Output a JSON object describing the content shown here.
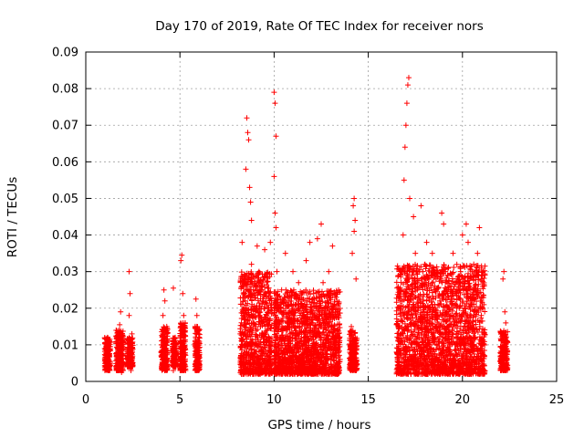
{
  "chart_data": {
    "type": "scatter",
    "title": "Day 170 of 2019, Rate Of TEC Index for receiver nors",
    "xlabel": "GPS time / hours",
    "ylabel": "ROTI / TECUs",
    "xlim": [
      0,
      25
    ],
    "ylim": [
      0,
      0.09
    ],
    "grid": true,
    "x_ticks": [
      0,
      5,
      10,
      15,
      20,
      25
    ],
    "y_ticks": [
      0,
      0.01,
      0.02,
      0.03,
      0.04,
      0.05,
      0.06,
      0.07,
      0.08,
      0.09
    ],
    "x_tick_labels": [
      "0",
      "5",
      "10",
      "15",
      "20",
      "25"
    ],
    "y_tick_labels": [
      "0",
      "0.01",
      "0.02",
      "0.03",
      "0.04",
      "0.05",
      "0.06",
      "0.07",
      "0.08",
      "0.09"
    ],
    "marker": "+",
    "marker_color": "#ff0000",
    "series": [
      {
        "points": [
          [
            1.05,
            0.0105
          ],
          [
            1.1,
            0.0085
          ],
          [
            1.15,
            0.012
          ],
          [
            1.2,
            0.0062
          ],
          [
            1.25,
            0.0041
          ],
          [
            1.3,
            0.0095
          ],
          [
            1.1,
            0.0055
          ],
          [
            1.22,
            0.0075
          ],
          [
            1.7,
            0.006
          ],
          [
            1.75,
            0.01
          ],
          [
            1.8,
            0.0155
          ],
          [
            1.85,
            0.019
          ],
          [
            1.9,
            0.0025
          ],
          [
            1.95,
            0.0125
          ],
          [
            1.8,
            0.0085
          ],
          [
            1.9,
            0.0045
          ],
          [
            2.25,
            0.0105
          ],
          [
            2.3,
            0.03
          ],
          [
            2.35,
            0.024
          ],
          [
            2.4,
            0.006
          ],
          [
            2.45,
            0.013
          ],
          [
            2.3,
            0.018
          ],
          [
            2.4,
            0.003
          ],
          [
            2.35,
            0.009
          ],
          [
            4.05,
            0.0085
          ],
          [
            4.1,
            0.0125
          ],
          [
            4.15,
            0.025
          ],
          [
            4.2,
            0.022
          ],
          [
            4.25,
            0.006
          ],
          [
            4.3,
            0.015
          ],
          [
            4.2,
            0.0035
          ],
          [
            4.1,
            0.018
          ],
          [
            4.6,
            0.0095
          ],
          [
            4.65,
            0.0255
          ],
          [
            4.7,
            0.006
          ],
          [
            4.75,
            0.012
          ],
          [
            4.65,
            0.003
          ],
          [
            5.0,
            0.0105
          ],
          [
            5.05,
            0.033
          ],
          [
            5.1,
            0.0345
          ],
          [
            5.15,
            0.024
          ],
          [
            5.2,
            0.018
          ],
          [
            5.25,
            0.006
          ],
          [
            5.1,
            0.014
          ],
          [
            5.2,
            0.009
          ],
          [
            5.8,
            0.01
          ],
          [
            5.85,
            0.0225
          ],
          [
            5.9,
            0.018
          ],
          [
            5.95,
            0.006
          ],
          [
            6.0,
            0.013
          ],
          [
            5.9,
            0.004
          ],
          [
            6.0,
            0.0085
          ],
          [
            8.2,
            0.013
          ],
          [
            8.3,
            0.038
          ],
          [
            8.4,
            0.027
          ],
          [
            8.5,
            0.058
          ],
          [
            8.55,
            0.072
          ],
          [
            8.6,
            0.068
          ],
          [
            8.65,
            0.066
          ],
          [
            8.7,
            0.053
          ],
          [
            8.75,
            0.049
          ],
          [
            8.8,
            0.044
          ],
          [
            8.5,
            0.02
          ],
          [
            8.6,
            0.01
          ],
          [
            8.7,
            0.005
          ],
          [
            8.9,
            0.025
          ],
          [
            9.0,
            0.015
          ],
          [
            9.1,
            0.037
          ],
          [
            9.2,
            0.03
          ],
          [
            9.3,
            0.008
          ],
          [
            9.4,
            0.022
          ],
          [
            9.5,
            0.036
          ],
          [
            9.6,
            0.018
          ],
          [
            9.7,
            0.012
          ],
          [
            8.8,
            0.032
          ],
          [
            9.0,
            0.008
          ],
          [
            9.3,
            0.026
          ],
          [
            9.6,
            0.004
          ],
          [
            8.4,
            0.006
          ],
          [
            9.8,
            0.038
          ],
          [
            10.0,
            0.079
          ],
          [
            10.05,
            0.076
          ],
          [
            10.1,
            0.067
          ],
          [
            10.0,
            0.056
          ],
          [
            10.05,
            0.046
          ],
          [
            10.1,
            0.042
          ],
          [
            10.15,
            0.03
          ],
          [
            10.0,
            0.02
          ],
          [
            10.1,
            0.01
          ],
          [
            10.2,
            0.005
          ],
          [
            10.3,
            0.016
          ],
          [
            10.4,
            0.025
          ],
          [
            10.5,
            0.012
          ],
          [
            10.6,
            0.035
          ],
          [
            10.7,
            0.008
          ],
          [
            10.8,
            0.022
          ],
          [
            10.9,
            0.006
          ],
          [
            11.0,
            0.03
          ],
          [
            11.1,
            0.015
          ],
          [
            11.2,
            0.01
          ],
          [
            11.3,
            0.027
          ],
          [
            11.4,
            0.005
          ],
          [
            11.5,
            0.02
          ],
          [
            11.6,
            0.012
          ],
          [
            11.7,
            0.033
          ],
          [
            11.8,
            0.008
          ],
          [
            11.9,
            0.038
          ],
          [
            12.0,
            0.016
          ],
          [
            12.1,
            0.024
          ],
          [
            12.2,
            0.005
          ],
          [
            12.3,
            0.039
          ],
          [
            12.4,
            0.013
          ],
          [
            12.5,
            0.043
          ],
          [
            12.6,
            0.027
          ],
          [
            12.7,
            0.009
          ],
          [
            12.8,
            0.018
          ],
          [
            12.9,
            0.03
          ],
          [
            13.0,
            0.006
          ],
          [
            13.1,
            0.037
          ],
          [
            13.2,
            0.014
          ],
          [
            13.3,
            0.023
          ],
          [
            13.4,
            0.01
          ],
          [
            13.5,
            0.006
          ],
          [
            14.1,
            0.015
          ],
          [
            14.15,
            0.035
          ],
          [
            14.2,
            0.048
          ],
          [
            14.25,
            0.05
          ],
          [
            14.3,
            0.044
          ],
          [
            14.35,
            0.028
          ],
          [
            14.2,
            0.008
          ],
          [
            14.3,
            0.012
          ],
          [
            14.25,
            0.041
          ],
          [
            14.1,
            0.005
          ],
          [
            16.5,
            0.008
          ],
          [
            16.6,
            0.015
          ],
          [
            16.7,
            0.022
          ],
          [
            16.8,
            0.03
          ],
          [
            16.85,
            0.04
          ],
          [
            16.9,
            0.055
          ],
          [
            16.95,
            0.064
          ],
          [
            17.0,
            0.07
          ],
          [
            17.05,
            0.076
          ],
          [
            17.1,
            0.081
          ],
          [
            17.15,
            0.083
          ],
          [
            17.2,
            0.05
          ],
          [
            17.0,
            0.012
          ],
          [
            17.1,
            0.006
          ],
          [
            17.3,
            0.02
          ],
          [
            17.4,
            0.045
          ],
          [
            17.5,
            0.035
          ],
          [
            17.6,
            0.025
          ],
          [
            17.7,
            0.01
          ],
          [
            17.8,
            0.048
          ],
          [
            17.9,
            0.03
          ],
          [
            18.0,
            0.015
          ],
          [
            18.1,
            0.038
          ],
          [
            18.2,
            0.02
          ],
          [
            18.3,
            0.008
          ],
          [
            18.4,
            0.035
          ],
          [
            18.5,
            0.012
          ],
          [
            18.6,
            0.028
          ],
          [
            18.7,
            0.005
          ],
          [
            18.8,
            0.022
          ],
          [
            18.9,
            0.046
          ],
          [
            19.0,
            0.043
          ],
          [
            19.1,
            0.03
          ],
          [
            19.2,
            0.015
          ],
          [
            19.3,
            0.008
          ],
          [
            19.4,
            0.025
          ],
          [
            19.5,
            0.035
          ],
          [
            19.6,
            0.01
          ],
          [
            19.7,
            0.02
          ],
          [
            19.8,
            0.005
          ],
          [
            19.9,
            0.03
          ],
          [
            20.0,
            0.04
          ],
          [
            20.1,
            0.015
          ],
          [
            20.2,
            0.043
          ],
          [
            20.3,
            0.038
          ],
          [
            20.4,
            0.025
          ],
          [
            20.5,
            0.01
          ],
          [
            20.6,
            0.032
          ],
          [
            20.7,
            0.006
          ],
          [
            20.8,
            0.035
          ],
          [
            20.9,
            0.042
          ],
          [
            21.0,
            0.018
          ],
          [
            21.05,
            0.008
          ],
          [
            21.1,
            0.03
          ],
          [
            17.2,
            0.03
          ],
          [
            18.0,
            0.006
          ],
          [
            19.0,
            0.004
          ],
          [
            20.0,
            0.003
          ],
          [
            18.5,
            0.025
          ],
          [
            19.5,
            0.015
          ],
          [
            20.5,
            0.022
          ],
          [
            22.1,
            0.013
          ],
          [
            22.15,
            0.028
          ],
          [
            22.2,
            0.03
          ],
          [
            22.25,
            0.019
          ],
          [
            22.3,
            0.008
          ],
          [
            22.35,
            0.004
          ],
          [
            22.2,
            0.01
          ],
          [
            22.3,
            0.016
          ]
        ],
        "dense_segments": [
          {
            "x": [
              1.0,
              1.3
            ],
            "y": [
              0.003,
              0.012
            ]
          },
          {
            "x": [
              1.6,
              2.0
            ],
            "y": [
              0.003,
              0.014
            ]
          },
          {
            "x": [
              2.2,
              2.5
            ],
            "y": [
              0.004,
              0.012
            ]
          },
          {
            "x": [
              4.0,
              4.35
            ],
            "y": [
              0.003,
              0.015
            ]
          },
          {
            "x": [
              4.6,
              4.8
            ],
            "y": [
              0.004,
              0.012
            ]
          },
          {
            "x": [
              5.0,
              5.3
            ],
            "y": [
              0.003,
              0.016
            ]
          },
          {
            "x": [
              5.8,
              6.05
            ],
            "y": [
              0.003,
              0.015
            ]
          },
          {
            "x": [
              8.2,
              9.9
            ],
            "y": [
              0.002,
              0.03
            ]
          },
          {
            "x": [
              10.0,
              13.5
            ],
            "y": [
              0.002,
              0.025
            ]
          },
          {
            "x": [
              14.0,
              14.4
            ],
            "y": [
              0.003,
              0.014
            ]
          },
          {
            "x": [
              16.5,
              21.2
            ],
            "y": [
              0.002,
              0.032
            ]
          },
          {
            "x": [
              22.0,
              22.4
            ],
            "y": [
              0.003,
              0.014
            ]
          }
        ]
      }
    ]
  }
}
